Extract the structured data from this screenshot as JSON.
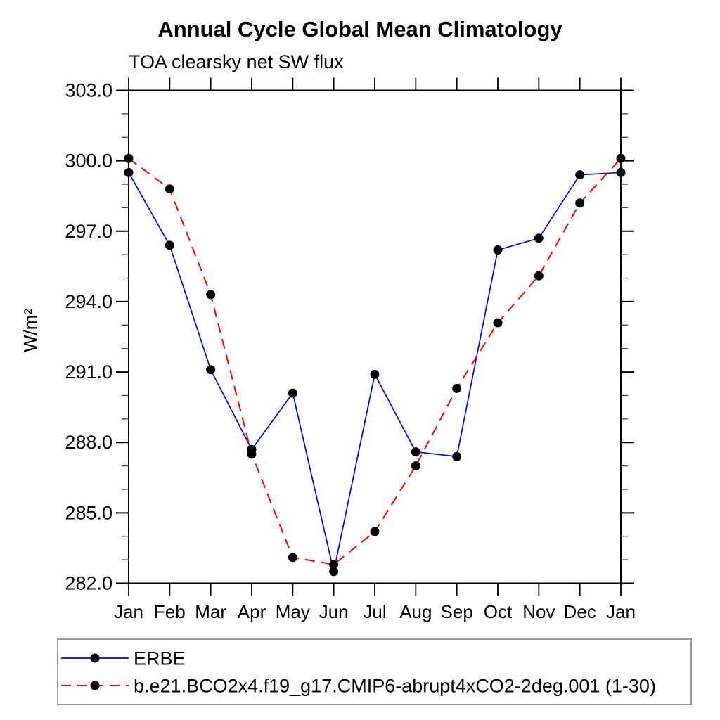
{
  "chart_data": {
    "type": "line",
    "title": "Annual Cycle Global Mean Climatology",
    "subtitle": "TOA clearsky net SW flux",
    "xlabel": "",
    "ylabel": "W/m²",
    "ylim": [
      282.0,
      303.0
    ],
    "y_major_step": 3.0,
    "y_minor_step": 1.0,
    "y_tick_labels": [
      "282.0",
      "285.0",
      "288.0",
      "291.0",
      "294.0",
      "297.0",
      "300.0",
      "303.0"
    ],
    "x_tick_labels": [
      "Jan",
      "Feb",
      "Mar",
      "Apr",
      "May",
      "Jun",
      "Jul",
      "Aug",
      "Sep",
      "Oct",
      "Nov",
      "Dec",
      "Jan"
    ],
    "x": [
      0,
      1,
      2,
      3,
      4,
      5,
      6,
      7,
      8,
      9,
      10,
      11,
      12
    ],
    "grid": false,
    "legend_position": "bottom-left",
    "marker": "filled-circle",
    "marker_color": "#000000",
    "axis_color": "#000000",
    "series": [
      {
        "name": "ERBE",
        "slug": "erbe",
        "color": "#0000ff",
        "line_style": "solid",
        "values": [
          299.5,
          296.4,
          291.1,
          287.7,
          290.1,
          282.5,
          290.9,
          287.6,
          287.4,
          296.2,
          296.7,
          299.4,
          299.5
        ]
      },
      {
        "name": "b.e21.BCO2x4.f19_g17.CMIP6-abrupt4xCO2-2deg.001 (1-30)",
        "slug": "model",
        "color": "#ff0000",
        "line_style": "dashed",
        "values": [
          300.1,
          298.8,
          294.3,
          287.5,
          283.1,
          282.8,
          284.2,
          287.0,
          290.3,
          293.1,
          295.1,
          298.2,
          300.1
        ]
      }
    ]
  }
}
